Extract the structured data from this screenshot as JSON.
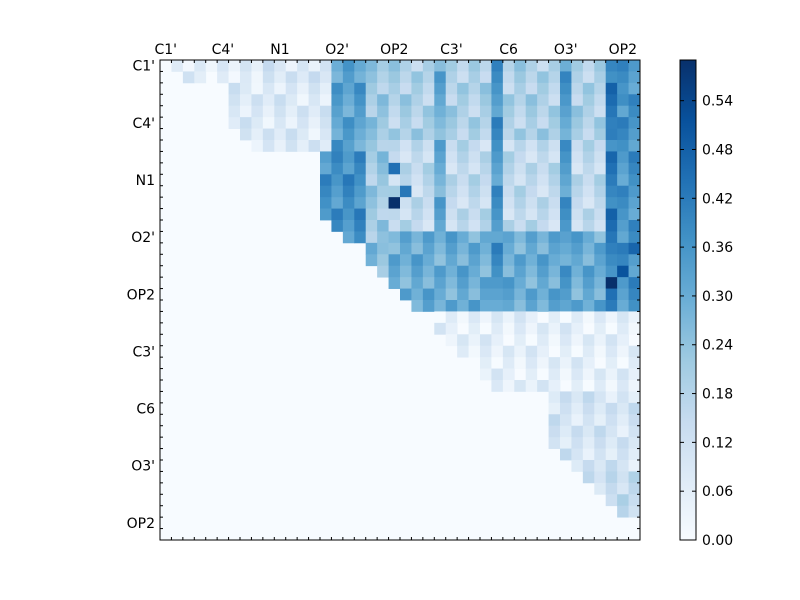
{
  "chart_data": {
    "type": "heatmap",
    "title": "",
    "xlabel": "",
    "ylabel": "",
    "colormap": "Blues",
    "color_low": "#f7fbff",
    "color_high": "#08306b",
    "vmin": 0.0,
    "vmax": 0.59,
    "grid": false,
    "legend": "colorbar-right",
    "x_tick_position": "top",
    "n_cells": 42,
    "x_tick_labels": [
      "C1'",
      "C4'",
      "N1",
      "O2'",
      "OP2",
      "C3'",
      "C6",
      "O3'",
      "OP2"
    ],
    "y_tick_labels": [
      "C1'",
      "C4'",
      "N1",
      "O2'",
      "OP2",
      "C3'",
      "C6",
      "O3'",
      "OP2"
    ],
    "colorbar_ticks": [
      "0.00",
      "0.06",
      "0.12",
      "0.18",
      "0.24",
      "0.30",
      "0.36",
      "0.42",
      "0.48",
      "0.54"
    ],
    "blocks": [
      {
        "rows": [
          0,
          9
        ],
        "cols": [
          15,
          17
        ],
        "value": 0.33
      },
      {
        "rows": [
          0,
          1
        ],
        "cols": [
          1,
          8
        ],
        "value": 0.06
      },
      {
        "rows": [
          0,
          1
        ],
        "cols": [
          9,
          14
        ],
        "value": 0.09
      },
      {
        "rows": [
          0,
          15
        ],
        "cols": [
          18,
          19
        ],
        "value": 0.22
      },
      {
        "rows": [
          0,
          6
        ],
        "cols": [
          20,
          42
        ],
        "value": 0.19
      },
      {
        "rows": [
          2,
          7
        ],
        "cols": [
          6,
          14
        ],
        "value": 0.08
      },
      {
        "rows": [
          7,
          15
        ],
        "cols": [
          20,
          42
        ],
        "value": 0.15
      },
      {
        "rows": [
          8,
          15
        ],
        "cols": [
          14,
          17
        ],
        "value": 0.37
      },
      {
        "rows": [
          16,
          21
        ],
        "cols": [
          18,
          19
        ],
        "value": 0.25
      },
      {
        "rows": [
          15,
          21
        ],
        "cols": [
          20,
          42
        ],
        "value": 0.3
      },
      {
        "rows": [
          22,
          28
        ],
        "cols": [
          24,
          42
        ],
        "value": 0.05
      },
      {
        "rows": [
          29,
          36
        ],
        "cols": [
          34,
          42
        ],
        "value": 0.1
      },
      {
        "rows": [
          36,
          39
        ],
        "cols": [
          37,
          42
        ],
        "value": 0.14
      }
    ],
    "hot_columns": [
      {
        "cols": [
          24,
          24
        ],
        "rows": [
          0,
          21
        ],
        "value": 0.3
      },
      {
        "cols": [
          29,
          29
        ],
        "rows": [
          0,
          21
        ],
        "value": 0.36
      },
      {
        "cols": [
          35,
          35
        ],
        "rows": [
          0,
          21
        ],
        "value": 0.34
      },
      {
        "cols": [
          39,
          39
        ],
        "rows": [
          0,
          21
        ],
        "value": 0.42
      },
      {
        "cols": [
          40,
          41
        ],
        "rows": [
          0,
          21
        ],
        "value": 0.36
      }
    ],
    "peaks": [
      {
        "row": 12,
        "col": 20,
        "value": 0.57
      },
      {
        "row": 9,
        "col": 20,
        "value": 0.47
      },
      {
        "row": 11,
        "col": 21,
        "value": 0.43
      },
      {
        "row": 19,
        "col": 39,
        "value": 0.59
      },
      {
        "row": 18,
        "col": 40,
        "value": 0.5
      },
      {
        "row": 16,
        "col": 41,
        "value": 0.47
      },
      {
        "row": 6,
        "col": 39,
        "value": 0.45
      },
      {
        "row": 3,
        "col": 40,
        "value": 0.4
      }
    ]
  }
}
